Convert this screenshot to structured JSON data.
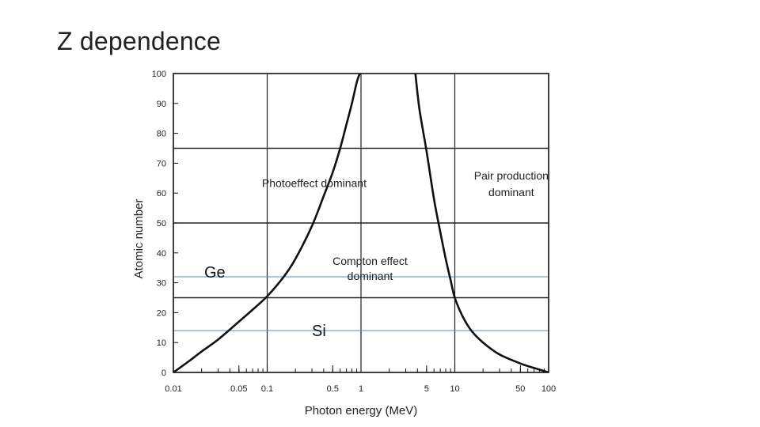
{
  "slide": {
    "title": "Z dependence"
  },
  "chart_data": {
    "type": "line",
    "xscale": "log",
    "xlabel": "Photon energy (MeV)",
    "ylabel": "Atomic number",
    "xlim": [
      0.01,
      100
    ],
    "ylim": [
      0,
      100
    ],
    "x_ticks": [
      {
        "value": 0.01,
        "label": "0.01"
      },
      {
        "value": 0.05,
        "label": "0.05"
      },
      {
        "value": 0.1,
        "label": "0.1"
      },
      {
        "value": 0.5,
        "label": "0.5"
      },
      {
        "value": 1,
        "label": "1"
      },
      {
        "value": 5,
        "label": "5"
      },
      {
        "value": 10,
        "label": "10"
      },
      {
        "value": 50,
        "label": "50"
      },
      {
        "value": 100,
        "label": "100"
      }
    ],
    "y_ticks": [
      {
        "value": 0,
        "label": "0"
      },
      {
        "value": 10,
        "label": "10"
      },
      {
        "value": 20,
        "label": "20"
      },
      {
        "value": 30,
        "label": "30"
      },
      {
        "value": 40,
        "label": "40"
      },
      {
        "value": 50,
        "label": "50"
      },
      {
        "value": 60,
        "label": "60"
      },
      {
        "value": 70,
        "label": "70"
      },
      {
        "value": 80,
        "label": "80"
      },
      {
        "value": 90,
        "label": "90"
      },
      {
        "value": 100,
        "label": "100"
      }
    ],
    "grid": {
      "vertical": [
        0.1,
        1,
        10
      ],
      "horizontal": [
        25,
        50,
        75
      ]
    },
    "series": [
      {
        "name": "Photoeffect / Compton boundary",
        "x": [
          0.01,
          0.015,
          0.02,
          0.03,
          0.05,
          0.07,
          0.1,
          0.15,
          0.2,
          0.3,
          0.4,
          0.5,
          0.6,
          0.7,
          0.8,
          0.9,
          0.97
        ],
        "y": [
          0,
          4,
          7,
          11,
          17,
          21,
          25.5,
          32,
          38,
          49,
          59,
          67,
          75,
          83,
          90,
          97,
          100
        ]
      },
      {
        "name": "Compton / Pair production boundary",
        "x": [
          3.8,
          4.2,
          5,
          6,
          7,
          8,
          9,
          10,
          12,
          15,
          20,
          30,
          50,
          70,
          100
        ],
        "y": [
          100,
          88,
          74,
          58,
          47,
          38,
          31,
          25,
          19,
          14,
          10,
          6,
          3,
          1.5,
          0
        ]
      }
    ],
    "reference_lines": [
      {
        "name": "Ge",
        "y": 32,
        "color": "#5b8bb0"
      },
      {
        "name": "Si",
        "y": 14,
        "color": "#5b8bb0"
      }
    ],
    "annotations": [
      {
        "text": "Photoeffect dominant",
        "x": 0.088,
        "y": 62
      },
      {
        "text": "Pair production",
        "x": 40,
        "y": 64.5
      },
      {
        "text": "dominant",
        "x": 40,
        "y": 59
      },
      {
        "text": "Compton effect",
        "x": 1.25,
        "y": 36
      },
      {
        "text": "dominant",
        "x": 1.25,
        "y": 31
      }
    ]
  }
}
